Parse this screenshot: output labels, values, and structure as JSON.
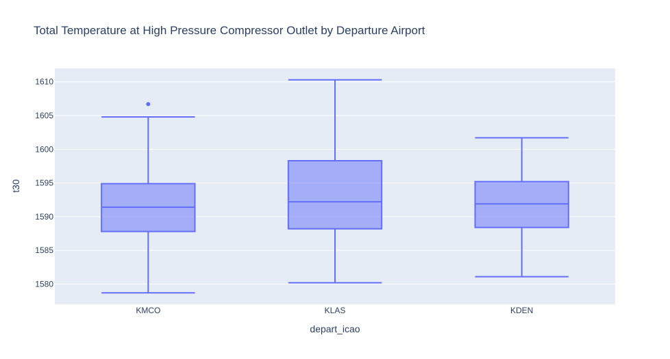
{
  "chart_data": {
    "type": "box",
    "title": "Total Temperature at High Pressure Compressor Outlet by Departure Airport",
    "xlabel": "depart_icao",
    "ylabel": "t30",
    "ylim": [
      1577,
      1612
    ],
    "yticks": [
      1580,
      1585,
      1590,
      1595,
      1600,
      1605,
      1610
    ],
    "grid": true,
    "legend": "none",
    "categories": [
      "KMCO",
      "KLAS",
      "KDEN"
    ],
    "boxes": [
      {
        "category": "KMCO",
        "lower_whisker": 1578.7,
        "q1": 1587.8,
        "median": 1591.4,
        "q3": 1594.9,
        "upper_whisker": 1604.8,
        "outliers": [
          1606.7
        ]
      },
      {
        "category": "KLAS",
        "lower_whisker": 1580.2,
        "q1": 1588.2,
        "median": 1592.2,
        "q3": 1598.3,
        "upper_whisker": 1610.3,
        "outliers": []
      },
      {
        "category": "KDEN",
        "lower_whisker": 1581.1,
        "q1": 1588.4,
        "median": 1591.9,
        "q3": 1595.2,
        "upper_whisker": 1601.7,
        "outliers": []
      }
    ],
    "colors": {
      "box_line": "#636efa",
      "box_fill": "rgba(99,110,250,0.5)",
      "plot_bg": "#e5ecf6",
      "grid": "#ffffff",
      "text": "#2a3f5f"
    }
  }
}
